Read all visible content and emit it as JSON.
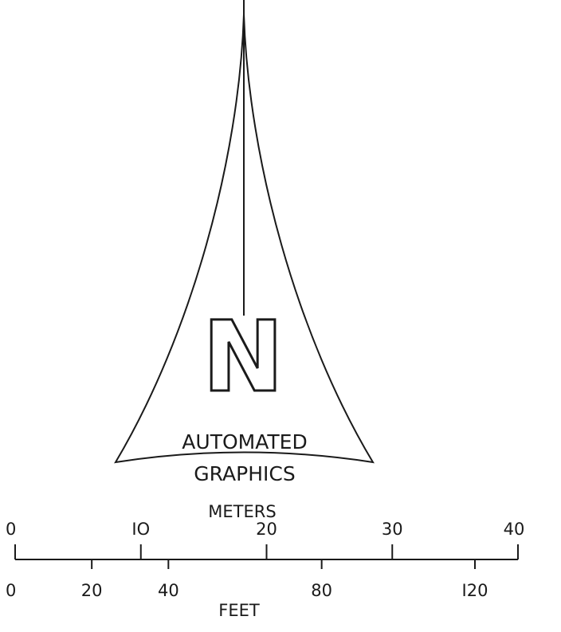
{
  "north_arrow": {
    "letter": "N",
    "caption_line1": "AUTOMATED",
    "caption_line2": "GRAPHICS",
    "ink_color": "#1a1a1a"
  },
  "scale_bar": {
    "top_units_label": "METERS",
    "bottom_units_label": "FEET",
    "meters_ticks": [
      {
        "value": 0,
        "label": "0"
      },
      {
        "value": 10,
        "label": "IO"
      },
      {
        "value": 20,
        "label": "20"
      },
      {
        "value": 30,
        "label": "30"
      },
      {
        "value": 40,
        "label": "40"
      }
    ],
    "feet_ticks": [
      {
        "value": 0,
        "label": "0"
      },
      {
        "value": 20,
        "label": "20"
      },
      {
        "value": 40,
        "label": "40"
      },
      {
        "value": 80,
        "label": "80"
      },
      {
        "value": 120,
        "label": "I20"
      }
    ]
  }
}
